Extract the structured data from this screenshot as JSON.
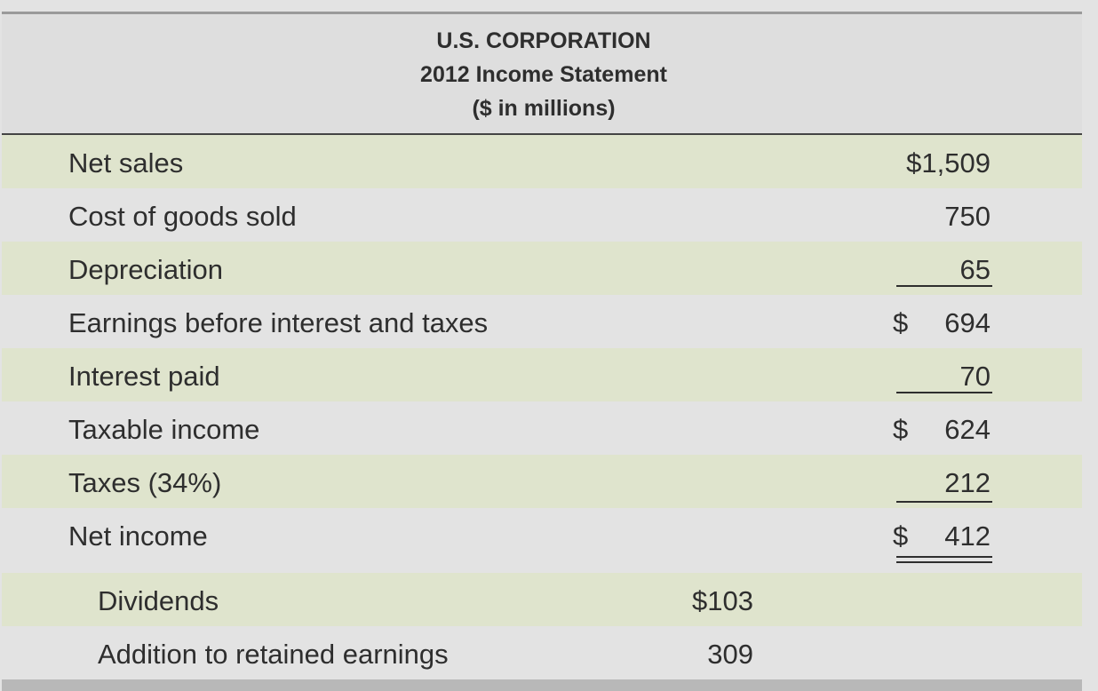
{
  "header": {
    "company": "U.S. CORPORATION",
    "title": "2012 Income Statement",
    "units": "($ in millions)"
  },
  "table": {
    "rows": [
      {
        "label": "Net sales",
        "amount": "$1,509"
      },
      {
        "label": "Cost of goods sold",
        "amount": "750"
      },
      {
        "label": "Depreciation",
        "amount": "65"
      },
      {
        "label": "Earnings before interest and taxes",
        "currency": "$",
        "amount": "694"
      },
      {
        "label": "Interest paid",
        "amount": "70"
      },
      {
        "label": "Taxable income",
        "currency": "$",
        "amount": "624"
      },
      {
        "label": "Taxes (34%)",
        "amount": "212"
      },
      {
        "label": "Net income",
        "currency": "$",
        "amount": "412"
      }
    ],
    "sub_rows": [
      {
        "label": "Dividends",
        "amount": "$103"
      },
      {
        "label": "Addition to retained earnings",
        "amount": "309"
      }
    ]
  }
}
